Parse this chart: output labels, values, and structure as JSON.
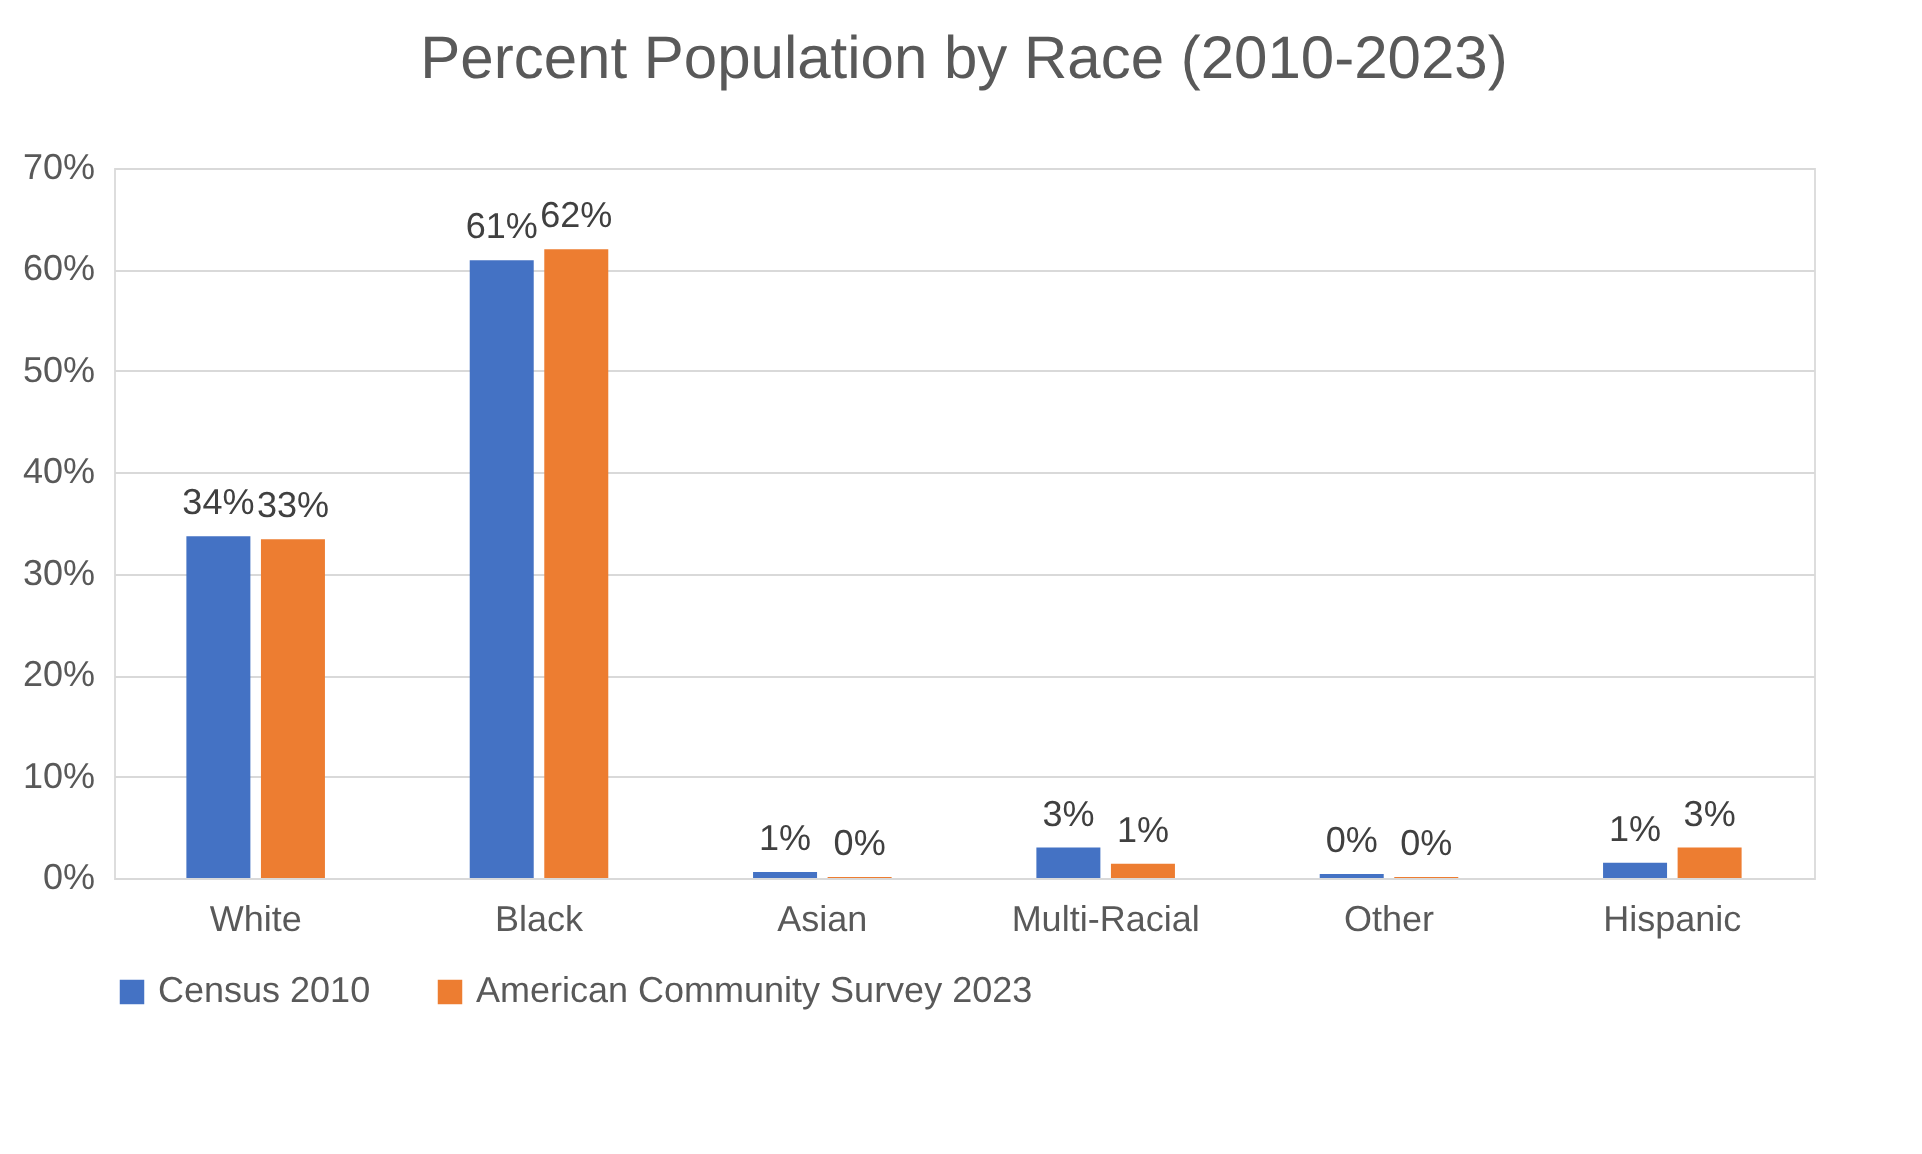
{
  "chart_data": {
    "type": "bar",
    "title": "Percent Population by Race (2010-2023)",
    "categories": [
      "White",
      "Black",
      "Asian",
      "Multi-Racial",
      "Other",
      "Hispanic"
    ],
    "series": [
      {
        "name": "Census 2010",
        "color": "#4472c4",
        "values": [
          33.7,
          60.9,
          0.6,
          3.0,
          0.4,
          1.5
        ],
        "value_labels": [
          "34%",
          "61%",
          "1%",
          "3%",
          "0%",
          "1%"
        ]
      },
      {
        "name": "American Community Survey 2023",
        "color": "#ed7d31",
        "values": [
          33.4,
          62.0,
          0.1,
          1.4,
          0.1,
          3.0
        ],
        "value_labels": [
          "33%",
          "62%",
          "0%",
          "1%",
          "0%",
          "3%"
        ]
      }
    ],
    "ylim": [
      0,
      70
    ],
    "yticks": [
      {
        "value": 0,
        "label": "0%"
      },
      {
        "value": 10,
        "label": "10%"
      },
      {
        "value": 20,
        "label": "20%"
      },
      {
        "value": 30,
        "label": "30%"
      },
      {
        "value": 40,
        "label": "40%"
      },
      {
        "value": 50,
        "label": "50%"
      },
      {
        "value": 60,
        "label": "60%"
      },
      {
        "value": 70,
        "label": "70%"
      }
    ],
    "grid": "y",
    "legend": "bottom"
  }
}
